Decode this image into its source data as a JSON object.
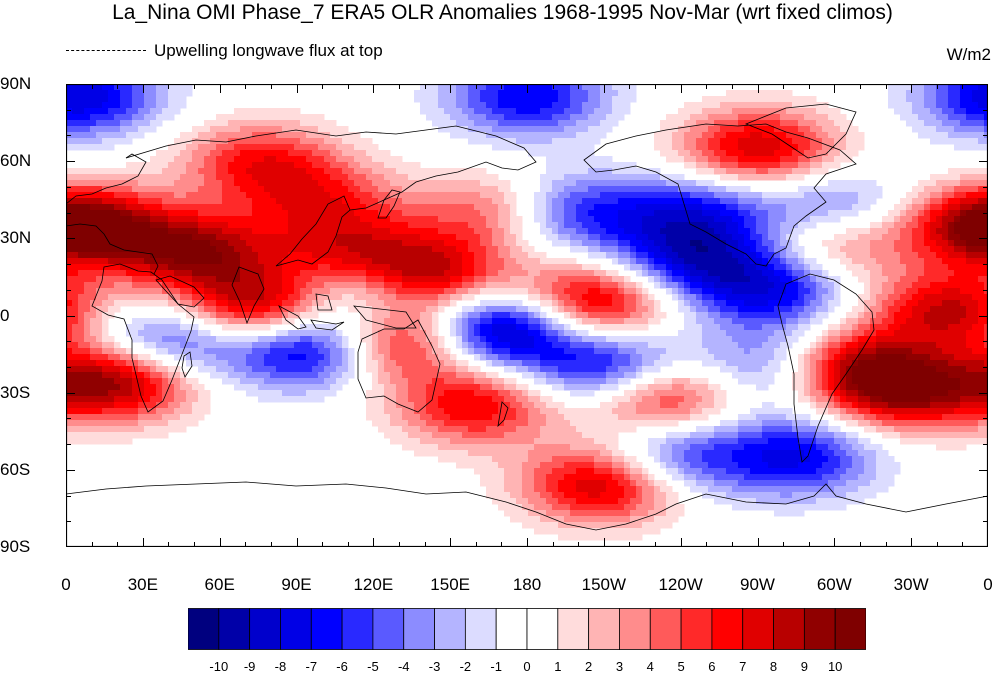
{
  "title": "La_Nina OMI Phase_7 ERA5 OLR Anomalies 1968-1995 Nov-Mar (wrt fixed climos)",
  "subtitle": "Upwelling longwave flux at top",
  "units": "W/m2",
  "y_axis": {
    "ticks": [
      "90N",
      "60N",
      "30N",
      "0",
      "30S",
      "60S",
      "90S"
    ],
    "values": [
      90,
      60,
      30,
      0,
      -30,
      -60,
      -90
    ]
  },
  "x_axis": {
    "ticks": [
      "0",
      "30E",
      "60E",
      "90E",
      "120E",
      "150E",
      "180",
      "150W",
      "120W",
      "90W",
      "60W",
      "30W",
      "0"
    ],
    "values": [
      0,
      30,
      60,
      90,
      120,
      150,
      180,
      210,
      240,
      270,
      300,
      330,
      360
    ]
  },
  "colorbar": {
    "labels": [
      "-10",
      "-9",
      "-8",
      "-7",
      "-6",
      "-5",
      "-4",
      "-3",
      "-2",
      "-1",
      "0",
      "1",
      "2",
      "3",
      "4",
      "5",
      "6",
      "7",
      "8",
      "9",
      "10"
    ],
    "colors": [
      "#00007f",
      "#0000a8",
      "#0000cc",
      "#0000e6",
      "#0000ff",
      "#2929ff",
      "#5a5aff",
      "#8c8cff",
      "#b4b4ff",
      "#dcdcff",
      "#ffffff",
      "#ffffff",
      "#ffdcdc",
      "#ffb4b4",
      "#ff8c8c",
      "#ff5a5a",
      "#ff2929",
      "#ff0000",
      "#e00000",
      "#b80000",
      "#900000",
      "#7f0000"
    ]
  },
  "chart_data": {
    "type": "heatmap",
    "title": "La_Nina OMI Phase_7 ERA5 OLR Anomalies 1968-1995 Nov-Mar (wrt fixed climos)",
    "subtitle": "Upwelling longwave flux at top",
    "units": "W/m2",
    "xlim": [
      0,
      360
    ],
    "ylim": [
      -90,
      90
    ],
    "contour_levels": [
      -10,
      -9,
      -8,
      -7,
      -6,
      -5,
      -4,
      -3,
      -2,
      -1,
      0,
      1,
      2,
      3,
      4,
      5,
      6,
      7,
      8,
      9,
      10
    ],
    "anomaly_features": [
      {
        "lon": 170,
        "lat": -5,
        "value": -11
      },
      {
        "lon": 215,
        "lat": -22,
        "value": -10
      },
      {
        "lon": 95,
        "lat": -12,
        "value": -10
      },
      {
        "lon": 40,
        "lat": -10,
        "value": -7
      },
      {
        "lon": 120,
        "lat": 10,
        "value": -6
      },
      {
        "lon": 245,
        "lat": 22,
        "value": -7
      },
      {
        "lon": 275,
        "lat": 10,
        "value": -7
      },
      {
        "lon": 278,
        "lat": -20,
        "value": -6
      },
      {
        "lon": 195,
        "lat": 40,
        "value": -7
      },
      {
        "lon": 245,
        "lat": 40,
        "value": -6
      },
      {
        "lon": 300,
        "lat": 40,
        "value": -6
      },
      {
        "lon": 285,
        "lat": -55,
        "value": -7
      },
      {
        "lon": 235,
        "lat": -55,
        "value": -6
      },
      {
        "lon": 180,
        "lat": 85,
        "value": -7
      },
      {
        "lon": 5,
        "lat": 85,
        "value": -8
      },
      {
        "lon": 75,
        "lat": 2,
        "value": 10
      },
      {
        "lon": 140,
        "lat": 15,
        "value": 10
      },
      {
        "lon": 130,
        "lat": -10,
        "value": 9
      },
      {
        "lon": 50,
        "lat": 25,
        "value": 9
      },
      {
        "lon": 20,
        "lat": -25,
        "value": 10
      },
      {
        "lon": 205,
        "lat": 5,
        "value": 9
      },
      {
        "lon": 230,
        "lat": -30,
        "value": 10
      },
      {
        "lon": 305,
        "lat": -20,
        "value": 9
      },
      {
        "lon": 210,
        "lat": -65,
        "value": 9
      },
      {
        "lon": 270,
        "lat": 65,
        "value": 8
      },
      {
        "lon": 345,
        "lat": 2,
        "value": 8
      },
      {
        "lon": 330,
        "lat": -30,
        "value": 8
      },
      {
        "lon": 10,
        "lat": 35,
        "value": 7
      },
      {
        "lon": 355,
        "lat": 35,
        "value": 6
      },
      {
        "lon": 300,
        "lat": 30,
        "value": 6
      },
      {
        "lon": 160,
        "lat": -35,
        "value": 7
      },
      {
        "lon": 170,
        "lat": 40,
        "value": 6
      },
      {
        "lon": 100,
        "lat": 45,
        "value": 5
      },
      {
        "lon": 75,
        "lat": 60,
        "value": 6
      },
      {
        "lon": 110,
        "lat": 25,
        "value": 6
      }
    ]
  }
}
